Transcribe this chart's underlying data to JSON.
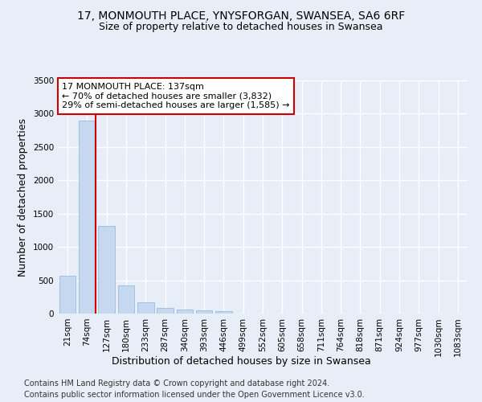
{
  "title": "17, MONMOUTH PLACE, YNYSFORGAN, SWANSEA, SA6 6RF",
  "subtitle": "Size of property relative to detached houses in Swansea",
  "xlabel": "Distribution of detached houses by size in Swansea",
  "ylabel": "Number of detached properties",
  "bar_color": "#c5d8f0",
  "bar_edge_color": "#8ab4d8",
  "background_color": "#e8eef8",
  "grid_color": "#ffffff",
  "categories": [
    "21sqm",
    "74sqm",
    "127sqm",
    "180sqm",
    "233sqm",
    "287sqm",
    "340sqm",
    "393sqm",
    "446sqm",
    "499sqm",
    "552sqm",
    "605sqm",
    "658sqm",
    "711sqm",
    "764sqm",
    "818sqm",
    "871sqm",
    "924sqm",
    "977sqm",
    "1030sqm",
    "1083sqm"
  ],
  "values": [
    570,
    2900,
    1310,
    420,
    175,
    80,
    55,
    45,
    38,
    0,
    0,
    0,
    0,
    0,
    0,
    0,
    0,
    0,
    0,
    0,
    0
  ],
  "ylim": [
    0,
    3500
  ],
  "yticks": [
    0,
    500,
    1000,
    1500,
    2000,
    2500,
    3000,
    3500
  ],
  "vline_bar_index": 1,
  "annotation_text": "17 MONMOUTH PLACE: 137sqm\n← 70% of detached houses are smaller (3,832)\n29% of semi-detached houses are larger (1,585) →",
  "footnote1": "Contains HM Land Registry data © Crown copyright and database right 2024.",
  "footnote2": "Contains public sector information licensed under the Open Government Licence v3.0.",
  "vline_color": "#cc0000",
  "annotation_box_edgecolor": "#cc0000",
  "title_fontsize": 10,
  "subtitle_fontsize": 9,
  "axis_label_fontsize": 9,
  "tick_fontsize": 7.5,
  "annotation_fontsize": 8,
  "footnote_fontsize": 7
}
